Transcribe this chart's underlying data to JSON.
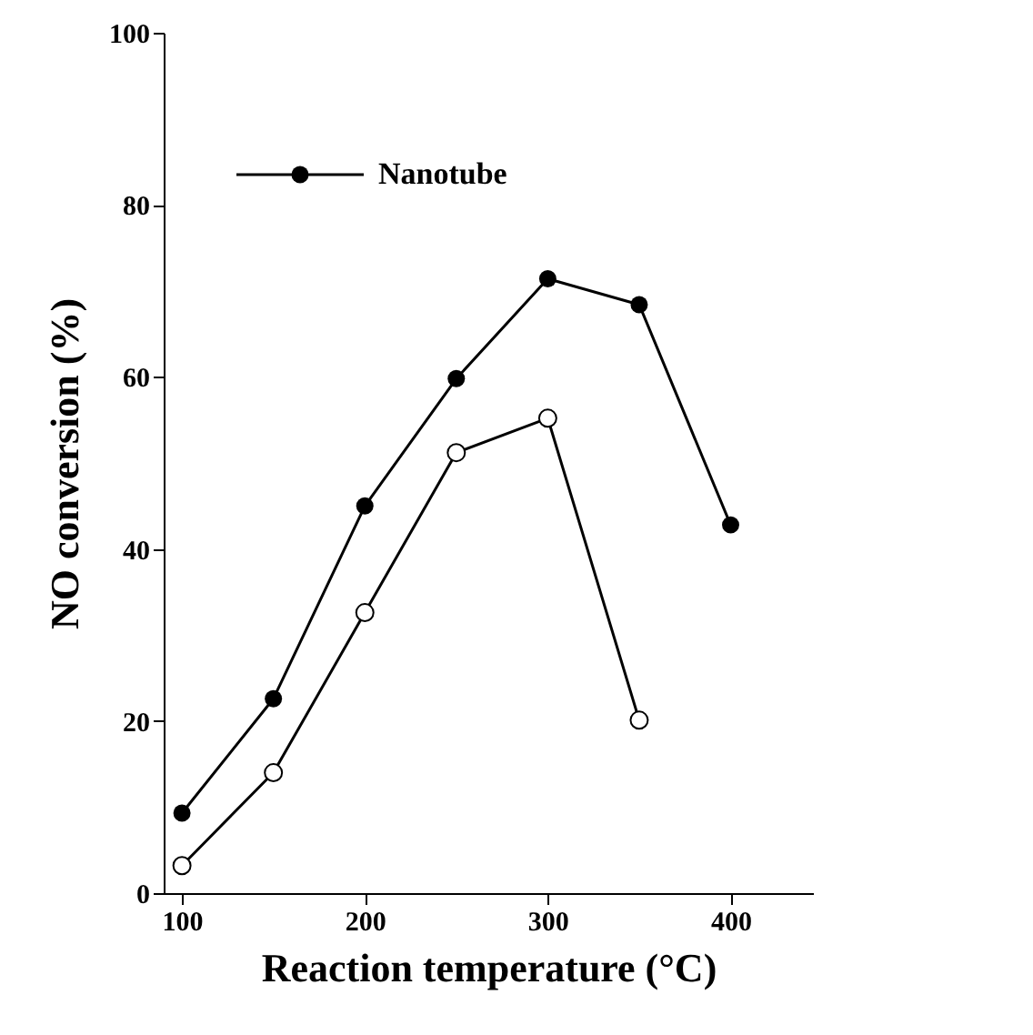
{
  "chart_data": {
    "type": "line",
    "xlabel": "Reaction temperature (°C)",
    "ylabel": "NO conversion (%)",
    "x": [
      100,
      150,
      200,
      250,
      300,
      350,
      400
    ],
    "series": [
      {
        "color": "#000000",
        "x": [
          100,
          150,
          200,
          250,
          300,
          350
        ],
        "values": [
          3.2,
          14,
          32.6,
          51.2,
          55.2,
          20.1
        ]
      },
      {
        "name": "Nanotube",
        "color": "#000000",
        "values": [
          9.3,
          22.6,
          45,
          59.8,
          71.4,
          68.4,
          42.8
        ]
      }
    ],
    "xlim": [
      90,
      445
    ],
    "ylim": [
      0,
      100
    ],
    "xticks": [
      100,
      200,
      300,
      400
    ],
    "yticks": [
      0,
      20,
      40,
      60,
      80,
      100
    ],
    "marker": "circle",
    "line_style": "solid",
    "grid": false,
    "legend": "top left"
  }
}
